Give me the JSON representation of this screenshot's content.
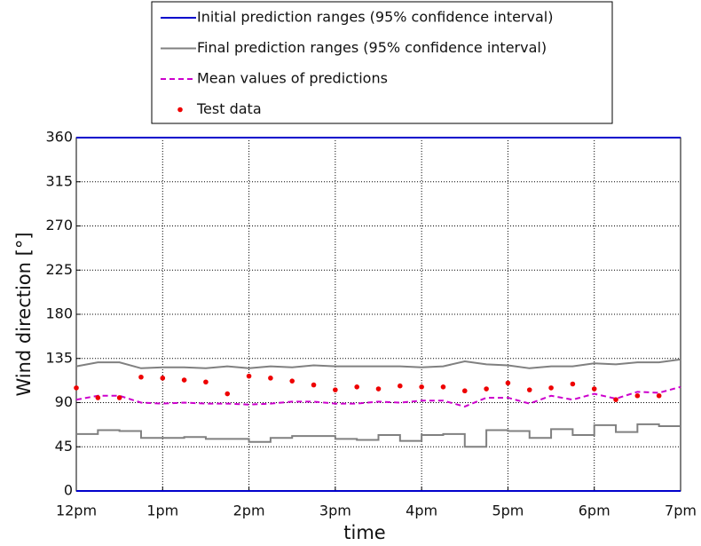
{
  "chart_data": {
    "type": "line",
    "xlabel": "time",
    "ylabel": "Wind direction [°]",
    "xlim": [
      0,
      7
    ],
    "ylim": [
      0,
      360
    ],
    "xticks": [
      {
        "value": 0,
        "label": "12pm"
      },
      {
        "value": 1,
        "label": "1pm"
      },
      {
        "value": 2,
        "label": "2pm"
      },
      {
        "value": 3,
        "label": "3pm"
      },
      {
        "value": 4,
        "label": "4pm"
      },
      {
        "value": 5,
        "label": "5pm"
      },
      {
        "value": 6,
        "label": "6pm"
      },
      {
        "value": 7,
        "label": "7pm"
      }
    ],
    "yticks": [
      0,
      45,
      90,
      135,
      180,
      225,
      270,
      315,
      360
    ],
    "grid": true,
    "legend": "top",
    "series": [
      {
        "name": "Initial prediction ranges (95% confidence interval)",
        "color": "#0000cc",
        "style": "band-lines",
        "x": [
          0,
          7
        ],
        "values": [
          360,
          360
        ],
        "lower": [
          0,
          0
        ]
      },
      {
        "name": "Final prediction ranges (95% confidence interval)",
        "color": "#808080",
        "style": "band-lines",
        "x": [
          0,
          0.25,
          0.5,
          0.75,
          1,
          1.25,
          1.5,
          1.75,
          2,
          2.25,
          2.5,
          2.75,
          3,
          3.25,
          3.5,
          3.75,
          4,
          4.25,
          4.5,
          4.75,
          5,
          5.25,
          5.5,
          5.75,
          6,
          6.25,
          6.5,
          6.75,
          7
        ],
        "values": [
          127,
          131,
          131,
          125,
          126,
          126,
          125,
          127,
          125,
          127,
          126,
          128,
          127,
          127,
          127,
          127,
          126,
          127,
          132,
          129,
          128,
          125,
          127,
          127,
          130,
          129,
          131,
          131,
          134
        ],
        "lower": [
          58,
          62,
          61,
          54,
          54,
          55,
          53,
          53,
          50,
          54,
          56,
          56,
          53,
          52,
          57,
          51,
          57,
          58,
          45,
          62,
          61,
          54,
          63,
          57,
          67,
          60,
          68,
          66,
          66
        ],
        "lower_step": true
      },
      {
        "name": "Mean values of predictions",
        "color": "#cc00cc",
        "style": "dashed",
        "x": [
          0,
          0.25,
          0.5,
          0.75,
          1,
          1.25,
          1.5,
          1.75,
          2,
          2.25,
          2.5,
          2.75,
          3,
          3.25,
          3.5,
          3.75,
          4,
          4.25,
          4.5,
          4.75,
          5,
          5.25,
          5.5,
          5.75,
          6,
          6.25,
          6.5,
          6.75,
          7
        ],
        "values": [
          93,
          97,
          97,
          90,
          89,
          90,
          89,
          89,
          88,
          89,
          91,
          91,
          89,
          89,
          91,
          90,
          92,
          92,
          86,
          95,
          95,
          89,
          97,
          93,
          99,
          94,
          101,
          100,
          106
        ]
      },
      {
        "name": "Test data",
        "color": "#ee0000",
        "style": "dots",
        "x": [
          0,
          0.25,
          0.5,
          0.75,
          1,
          1.25,
          1.5,
          1.75,
          2,
          2.25,
          2.5,
          2.75,
          3,
          3.25,
          3.5,
          3.75,
          4,
          4.25,
          4.5,
          4.75,
          5,
          5.25,
          5.5,
          5.75,
          6,
          6.25,
          6.5,
          6.75
        ],
        "values": [
          105,
          95,
          95,
          116,
          115,
          113,
          111,
          99,
          117,
          115,
          112,
          108,
          103,
          106,
          104,
          107,
          106,
          106,
          102,
          104,
          110,
          103,
          105,
          109,
          104,
          93,
          97,
          97
        ]
      }
    ]
  }
}
